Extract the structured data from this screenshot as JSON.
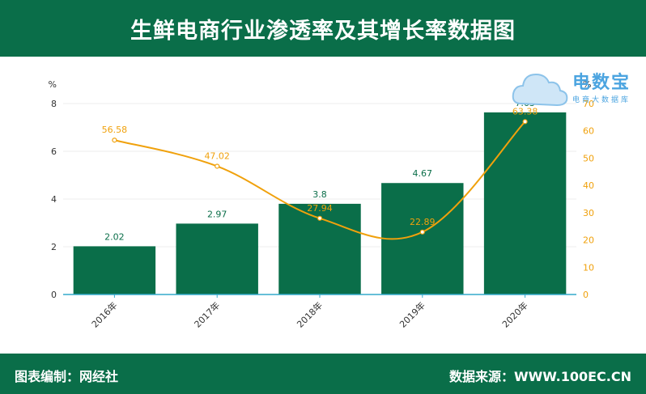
{
  "title": "生鲜电商行业渗透率及其增长率数据图",
  "footer": {
    "left": "图表编制：网经社",
    "right": "数据来源：WWW.100EC.CN"
  },
  "logo": {
    "name": "电数宝",
    "sub": "电商大数据库",
    "icon": "cloud-icon"
  },
  "chart_data": {
    "type": "bar",
    "categories": [
      "2016年",
      "2017年",
      "2018年",
      "2019年",
      "2020年"
    ],
    "series": [
      {
        "type": "bar",
        "axis": "left",
        "values": [
          2.02,
          2.97,
          3.8,
          4.67,
          7.63
        ]
      },
      {
        "type": "line",
        "axis": "right",
        "values": [
          56.58,
          47.02,
          27.94,
          22.89,
          63.38
        ]
      }
    ],
    "ylabel": "%",
    "y2label": "%",
    "ylim": [
      0,
      8
    ],
    "y2lim": [
      0,
      70
    ],
    "yticks": [
      0,
      2,
      4,
      6,
      8
    ],
    "y2ticks": [
      0,
      10,
      20,
      30,
      40,
      50,
      60,
      70
    ],
    "colors": {
      "bar": "#0a6e49",
      "line": "#f0a10c",
      "axis": "#33aacc",
      "grid": "#eeeeee",
      "text": "#333333"
    },
    "grid": true
  }
}
